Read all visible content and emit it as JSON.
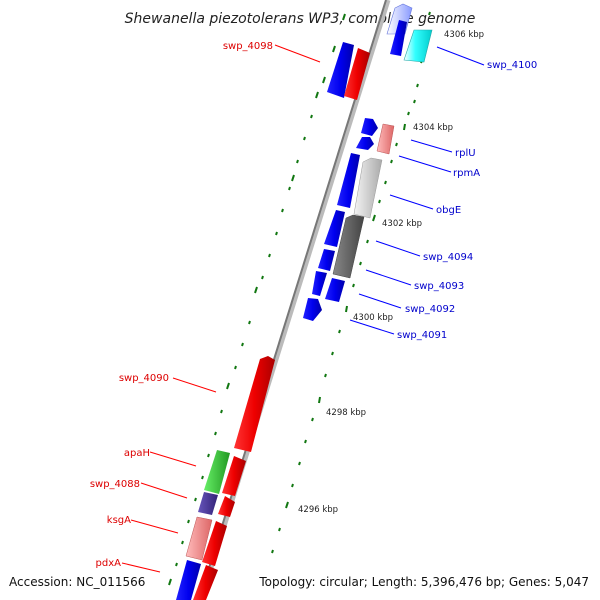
{
  "title": "Shewanella piezotolerans WP3, complete genome",
  "footer": {
    "accession": "Accession: NC_011566",
    "summary": "Topology: circular; Length: 5,396,476 bp; Genes: 5,047"
  },
  "scale_labels": [
    "4306 kbp",
    "4304 kbp",
    "4302 kbp",
    "4300 kbp",
    "4298 kbp",
    "4296 kbp"
  ],
  "colors": {
    "red": "#ff0000",
    "blue": "#0000ee",
    "cyan": "#00eeee",
    "green": "#33cc33",
    "purple": "#443399",
    "salmon": "#ee8888",
    "light_gray": "#cccccc",
    "dark_gray": "#666666",
    "tick_green": "#117711",
    "backbone": "#888888",
    "label_red": "#dd0000",
    "label_blue": "#0000cc"
  },
  "genes_left": [
    {
      "name": "swp_4098"
    },
    {
      "name": "swp_4090"
    },
    {
      "name": "apaH"
    },
    {
      "name": "swp_4088"
    },
    {
      "name": "ksgA"
    },
    {
      "name": "pdxA"
    }
  ],
  "genes_right": [
    {
      "name": "swp_4100"
    },
    {
      "name": "rplU"
    },
    {
      "name": "rpmA"
    },
    {
      "name": "obgE"
    },
    {
      "name": "swp_4094"
    },
    {
      "name": "swp_4093"
    },
    {
      "name": "swp_4092"
    },
    {
      "name": "swp_4091"
    }
  ]
}
